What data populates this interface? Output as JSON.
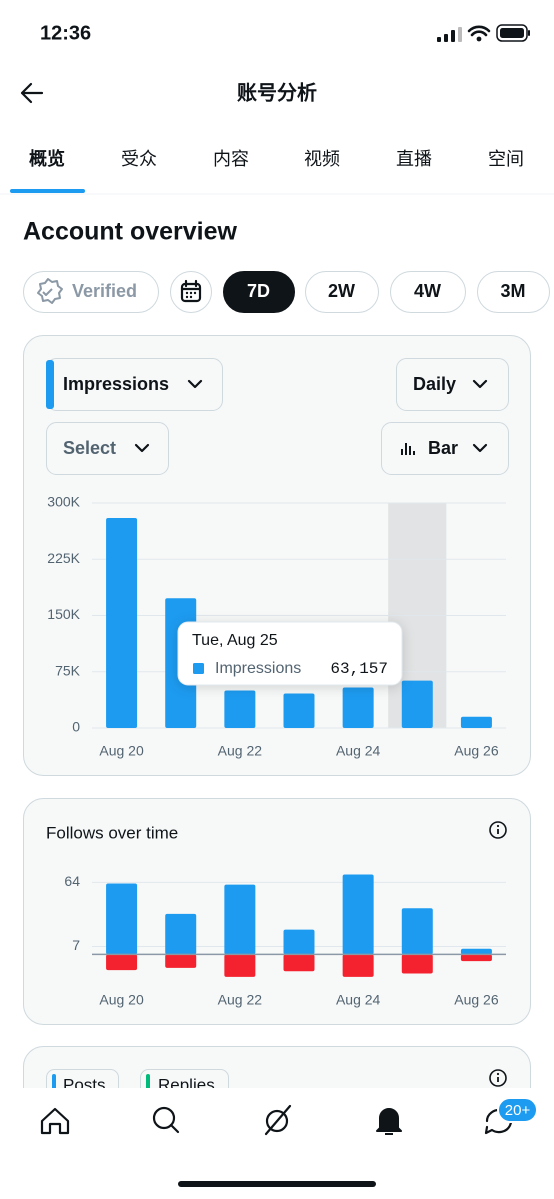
{
  "status_bar": {
    "time": "12:36"
  },
  "header": {
    "title": "账号分析"
  },
  "tabs": [
    "概览",
    "受众",
    "内容",
    "视频",
    "直播",
    "空间"
  ],
  "selected_tab": 0,
  "section_title": "Account overview",
  "filters": {
    "verified": "Verified",
    "ranges": [
      "7D",
      "2W",
      "4W",
      "3M"
    ],
    "selected_range": 0
  },
  "controls": {
    "metric": "Impressions",
    "interval": "Daily",
    "compare": "Select",
    "chart_type": "Bar"
  },
  "chart_data": [
    {
      "type": "bar",
      "categories": [
        "Aug 20",
        null,
        "Aug 22",
        null,
        "Aug 24",
        null,
        "Aug 26"
      ],
      "series": [
        {
          "name": "Impressions",
          "color": "#1d9bf0",
          "values": [
            280000,
            173000,
            50000,
            46000,
            54000,
            63157,
            15000
          ]
        }
      ],
      "ylim": [
        0,
        300000
      ],
      "yticks": [
        0,
        {
          "value": 75000,
          "label": "75K"
        },
        {
          "value": 150000,
          "label": "150K"
        },
        {
          "value": 225000,
          "label": "225K"
        },
        {
          "value": 300000,
          "label": "300K"
        }
      ],
      "grid": true,
      "highlight": 5,
      "tooltip": {
        "title": "Tue, Aug 25",
        "value_label": "63,157"
      }
    },
    {
      "type": "diverging_bar",
      "title": "Follows over time",
      "categories": [
        "Aug 20",
        null,
        "Aug 22",
        null,
        "Aug 24",
        null,
        "Aug 26"
      ],
      "series": [
        {
          "color": "#1d9bf0",
          "values": [
            63,
            36,
            62,
            22,
            71,
            41,
            5
          ]
        },
        {
          "color": "#f4212e",
          "values": [
            -14,
            -12,
            -20,
            -15,
            -20,
            -17,
            -6
          ]
        }
      ],
      "ylim": [
        -21,
        75
      ],
      "yticks": [
        7,
        64
      ],
      "grid": true
    }
  ],
  "next_card": {
    "chips": [
      "Posts",
      "Replies"
    ]
  },
  "tab_bar": {
    "badge": "20+"
  }
}
